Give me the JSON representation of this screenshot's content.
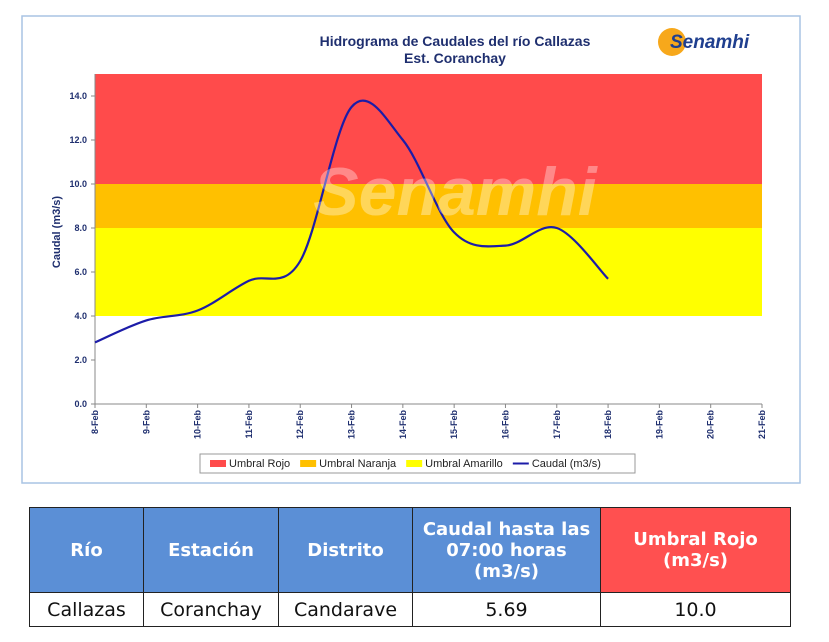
{
  "chart_data": {
    "type": "line",
    "title": "Hidrograma de Caudales del río Callazas",
    "subtitle": "Est. Coranchay",
    "logo": "Senamhi",
    "y_label": "Caudal (m3/s)",
    "x": [
      "8-Feb",
      "9-Feb",
      "10-Feb",
      "11-Feb",
      "12-Feb",
      "13-Feb",
      "14-Feb",
      "15-Feb",
      "16-Feb",
      "17-Feb",
      "18-Feb",
      "19-Feb",
      "20-Feb",
      "21-Feb"
    ],
    "ylim": [
      0,
      15
    ],
    "yticks": [
      {
        "value": 0,
        "label": "0.0"
      },
      {
        "value": 2,
        "label": "2.0"
      },
      {
        "value": 4,
        "label": "4.0"
      },
      {
        "value": 6,
        "label": "6.0"
      },
      {
        "value": 8,
        "label": "8.0"
      },
      {
        "value": 10,
        "label": "10.0"
      },
      {
        "value": 12,
        "label": "12.0"
      },
      {
        "value": 14,
        "label": "14.0"
      }
    ],
    "thresholds": [
      {
        "name": "Umbral Rojo",
        "color": "#ff4b4b",
        "from": 10,
        "to": 15
      },
      {
        "name": "Umbral Naranja",
        "color": "#ffc000",
        "from": 8,
        "to": 10
      },
      {
        "name": "Umbral Amarillo",
        "color": "#ffff00",
        "from": 4,
        "to": 8
      }
    ],
    "series": [
      {
        "name": "Caudal (m3/s)",
        "color": "#1c1ca8",
        "values": [
          2.8,
          3.8,
          4.25,
          5.6,
          6.5,
          13.5,
          12.0,
          7.8,
          7.2,
          8.0,
          5.69,
          null,
          null,
          null
        ]
      }
    ]
  },
  "table": {
    "header": [
      "Río",
      "Estación",
      "Distrito",
      "Caudal hasta las 07:00 horas (m3/s)",
      "Umbral Rojo (m3/s)"
    ],
    "rows": [
      [
        "Callazas",
        "Coranchay",
        "Candarave",
        "5.69",
        "10.0"
      ]
    ]
  }
}
